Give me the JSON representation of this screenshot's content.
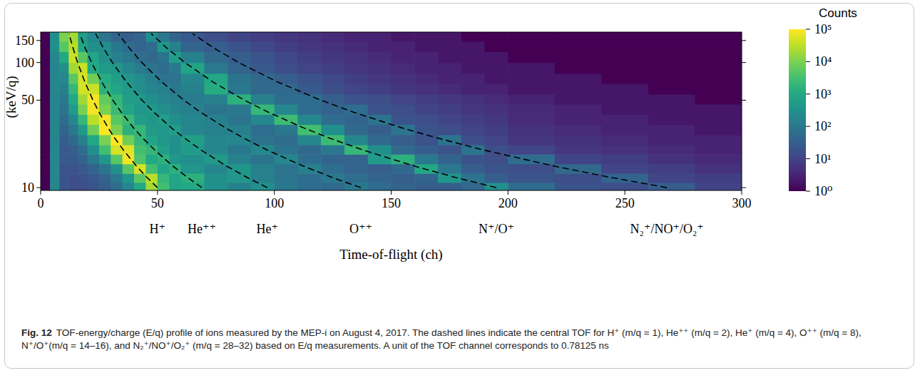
{
  "chart_data": {
    "type": "heatmap",
    "xlabel": "Time-of-flight (ch)",
    "ylabel": "(keV/q)",
    "xlim": [
      0,
      300
    ],
    "xticks": [
      0,
      50,
      100,
      150,
      200,
      250,
      300
    ],
    "ylim": [
      9.5,
      175
    ],
    "yticks": [
      10,
      50,
      100,
      150
    ],
    "log": "y",
    "grid": false,
    "colorbar_title": "Counts",
    "colorbar_lim": [
      1,
      100000
    ],
    "colorbar_ticks": [
      {
        "value": 1,
        "label": "10⁰"
      },
      {
        "value": 10,
        "label": "10¹"
      },
      {
        "value": 100,
        "label": "10²"
      },
      {
        "value": 1000,
        "label": "10³"
      },
      {
        "value": 10000,
        "label": "10⁴"
      },
      {
        "value": 100000,
        "label": "10⁵"
      }
    ],
    "x_edges": [
      0,
      4,
      8,
      12,
      16,
      20,
      25,
      30,
      35,
      40,
      45,
      50,
      55,
      60,
      70,
      80,
      90,
      100,
      110,
      120,
      130,
      140,
      150,
      160,
      170,
      180,
      190,
      200,
      220,
      240,
      260,
      280,
      300
    ],
    "y_edges": [
      9.5,
      11,
      13,
      15.5,
      18.5,
      22,
      26.5,
      32,
      38.5,
      46.5,
      56,
      68,
      82,
      100,
      122,
      148,
      175
    ],
    "cells": [
      [
        1,
        200,
        20,
        15,
        15,
        20,
        30,
        60,
        200,
        1000,
        20000,
        3000,
        800,
        1000,
        300,
        150,
        300,
        100,
        60,
        50,
        100,
        60,
        40,
        30,
        30,
        50,
        300,
        60,
        20,
        15,
        30,
        10
      ],
      [
        1,
        200,
        20,
        15,
        20,
        25,
        40,
        100,
        400,
        5000,
        30000,
        2000,
        800,
        1500,
        300,
        400,
        150,
        80,
        60,
        100,
        60,
        40,
        30,
        40,
        400,
        80,
        30,
        20,
        15,
        40,
        10,
        8
      ],
      [
        1,
        200,
        20,
        20,
        25,
        40,
        80,
        300,
        5000,
        50000,
        3000,
        800,
        1500,
        400,
        200,
        400,
        150,
        80,
        150,
        60,
        40,
        30,
        50,
        1000,
        100,
        30,
        20,
        15,
        50,
        10,
        8,
        5
      ],
      [
        1,
        200,
        25,
        25,
        40,
        100,
        400,
        5000,
        80000,
        4000,
        1000,
        1500,
        400,
        300,
        500,
        150,
        80,
        200,
        60,
        40,
        40,
        500,
        1500,
        100,
        40,
        20,
        15,
        60,
        10,
        8,
        5,
        4
      ],
      [
        1,
        200,
        25,
        30,
        60,
        300,
        3000,
        50000,
        60000,
        3000,
        2000,
        600,
        300,
        500,
        200,
        100,
        200,
        80,
        50,
        100,
        2000,
        300,
        50,
        30,
        20,
        80,
        15,
        10,
        6,
        5,
        4,
        3
      ],
      [
        1,
        200,
        30,
        50,
        150,
        1000,
        10000,
        100000,
        8000,
        2000,
        800,
        400,
        300,
        600,
        200,
        200,
        80,
        60,
        200,
        2500,
        200,
        50,
        30,
        20,
        80,
        15,
        10,
        6,
        5,
        4,
        3,
        3
      ],
      [
        1,
        200,
        40,
        100,
        500,
        8000,
        100000,
        10000,
        1500,
        2000,
        500,
        400,
        600,
        200,
        150,
        150,
        60,
        100,
        3000,
        300,
        50,
        30,
        80,
        20,
        15,
        10,
        8,
        5,
        4,
        3,
        3,
        2
      ],
      [
        1,
        200,
        60,
        200,
        2000,
        30000,
        80000,
        5000,
        2500,
        600,
        400,
        600,
        300,
        200,
        150,
        80,
        200,
        2500,
        200,
        60,
        40,
        80,
        20,
        15,
        10,
        8,
        6,
        4,
        3,
        3,
        2,
        2
      ],
      [
        1,
        200,
        80,
        500,
        10000,
        80000,
        10000,
        2500,
        800,
        400,
        500,
        300,
        200,
        150,
        80,
        100,
        2000,
        200,
        60,
        40,
        60,
        20,
        15,
        10,
        8,
        6,
        5,
        4,
        3,
        2,
        2,
        2
      ],
      [
        1,
        200,
        100,
        1000,
        20000,
        80000,
        6000,
        2000,
        600,
        500,
        300,
        200,
        150,
        120,
        150,
        1500,
        150,
        60,
        60,
        30,
        20,
        15,
        10,
        8,
        6,
        5,
        4,
        3,
        2,
        2,
        2,
        1
      ],
      [
        1,
        200,
        150,
        2000,
        50000,
        40000,
        1500,
        800,
        500,
        300,
        200,
        150,
        100,
        150,
        1200,
        100,
        50,
        50,
        25,
        15,
        10,
        8,
        6,
        5,
        4,
        3,
        3,
        2,
        2,
        2,
        1,
        1
      ],
      [
        1,
        200,
        200,
        5000,
        50000,
        8000,
        1200,
        600,
        400,
        250,
        150,
        80,
        80,
        200,
        1000,
        80,
        50,
        30,
        20,
        12,
        8,
        6,
        5,
        4,
        3,
        3,
        2,
        2,
        2,
        1,
        1,
        1
      ],
      [
        1,
        200,
        300,
        20000,
        40000,
        1000,
        500,
        400,
        200,
        120,
        80,
        60,
        100,
        800,
        100,
        40,
        25,
        15,
        10,
        8,
        6,
        5,
        4,
        3,
        3,
        2,
        2,
        2,
        1,
        1,
        1,
        1
      ],
      [
        1,
        200,
        1000,
        40000,
        5000,
        800,
        300,
        150,
        100,
        60,
        50,
        80,
        600,
        150,
        50,
        30,
        20,
        12,
        8,
        6,
        5,
        4,
        3,
        3,
        2,
        2,
        2,
        1,
        1,
        1,
        1,
        1
      ],
      [
        1,
        300,
        5000,
        30000,
        800,
        300,
        250,
        100,
        60,
        40,
        60,
        400,
        150,
        40,
        30,
        20,
        12,
        8,
        6,
        5,
        4,
        3,
        3,
        2,
        2,
        2,
        1,
        1,
        1,
        1,
        1,
        1
      ],
      [
        1,
        300,
        10000,
        20000,
        600,
        200,
        80,
        40,
        30,
        40,
        300,
        100,
        40,
        25,
        15,
        10,
        8,
        6,
        5,
        4,
        3,
        3,
        2,
        2,
        2,
        1,
        1,
        1,
        1,
        1,
        1,
        1
      ]
    ],
    "series": [
      {
        "name": "H⁺",
        "color": "#000000",
        "line_style": "dashed",
        "x": [
          50,
          45.6,
          40.8,
          35.4,
          31.6,
          28.9,
          25.0,
          22.4,
          18.9,
          15.8,
          13.9,
          12.1
        ],
        "y": [
          10,
          12,
          15,
          20,
          25,
          30,
          40,
          50,
          70,
          100,
          130,
          170
        ]
      },
      {
        "name": "He⁺⁺",
        "color": "#000000",
        "line_style": "dashed",
        "x": [
          69,
          63.0,
          56.3,
          48.8,
          43.6,
          39.8,
          34.5,
          30.9,
          26.1,
          21.8,
          19.1,
          16.7
        ],
        "y": [
          10,
          12,
          15,
          20,
          25,
          30,
          40,
          50,
          70,
          100,
          130,
          170
        ]
      },
      {
        "name": "He⁺",
        "color": "#000000",
        "line_style": "dashed",
        "x": [
          97,
          88.6,
          79.2,
          68.6,
          61.4,
          56.0,
          48.5,
          43.4,
          36.7,
          30.7,
          26.9,
          23.5
        ],
        "y": [
          10,
          12,
          15,
          20,
          25,
          30,
          40,
          50,
          70,
          100,
          130,
          170
        ]
      },
      {
        "name": "O⁺⁺",
        "color": "#000000",
        "line_style": "dashed",
        "x": [
          137,
          125.1,
          111.9,
          96.9,
          86.7,
          79.1,
          68.5,
          61.3,
          51.8,
          43.3,
          38.0,
          33.2
        ],
        "y": [
          10,
          12,
          15,
          20,
          25,
          30,
          40,
          50,
          70,
          100,
          130,
          170
        ]
      },
      {
        "name": "N⁺/O⁺",
        "color": "#000000",
        "line_style": "dashed",
        "x": [
          195,
          178.0,
          159.2,
          137.9,
          123.3,
          112.6,
          97.5,
          87.2,
          73.7,
          61.7,
          54.1,
          47.3
        ],
        "y": [
          10,
          12,
          15,
          20,
          25,
          30,
          40,
          50,
          70,
          100,
          130,
          170
        ]
      },
      {
        "name": "N₂⁺/NO⁺/O₂⁺",
        "color": "#000000",
        "line_style": "dashed",
        "x": [
          268,
          244.7,
          218.8,
          189.5,
          169.5,
          154.7,
          134.0,
          119.9,
          101.3,
          84.7,
          74.3,
          65.0
        ],
        "y": [
          10,
          12,
          15,
          20,
          25,
          30,
          40,
          50,
          70,
          100,
          130,
          170
        ]
      }
    ]
  },
  "caption": {
    "label": "Fig. 12",
    "text": "TOF-energy/charge (E/q) profile of ions measured by the MEP-i on August 4, 2017. The dashed lines indicate the central TOF for H⁺ (m/q = 1), He⁺⁺ (m/q = 2), He⁺ (m/q = 4), O⁺⁺ (m/q = 8), N⁺/O⁺(m/q = 14–16), and N₂⁺/NO⁺/O₂⁺ (m/q = 28–32) based on E/q measurements. A unit of the TOF channel corresponds to 0.78125 ns"
  }
}
